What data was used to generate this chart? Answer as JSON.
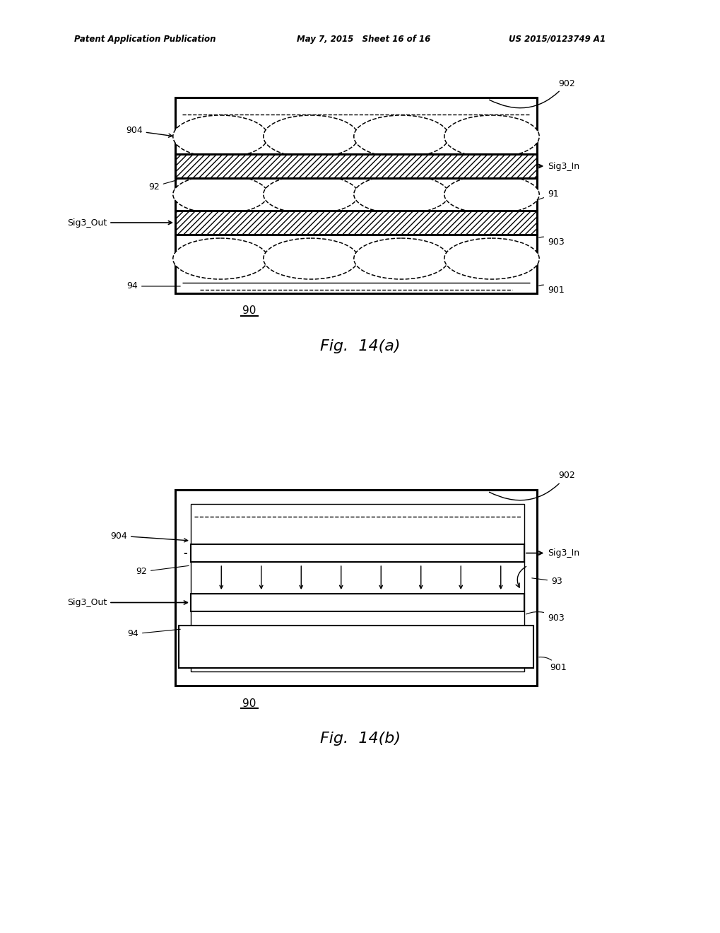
{
  "bg_color": "#ffffff",
  "line_color": "#000000",
  "header_text_left": "Patent Application Publication",
  "header_text_mid": "May 7, 2015   Sheet 16 of 16",
  "header_text_right": "US 2015/0123749 A1",
  "fig_width": 10.2,
  "fig_height": 13.2
}
